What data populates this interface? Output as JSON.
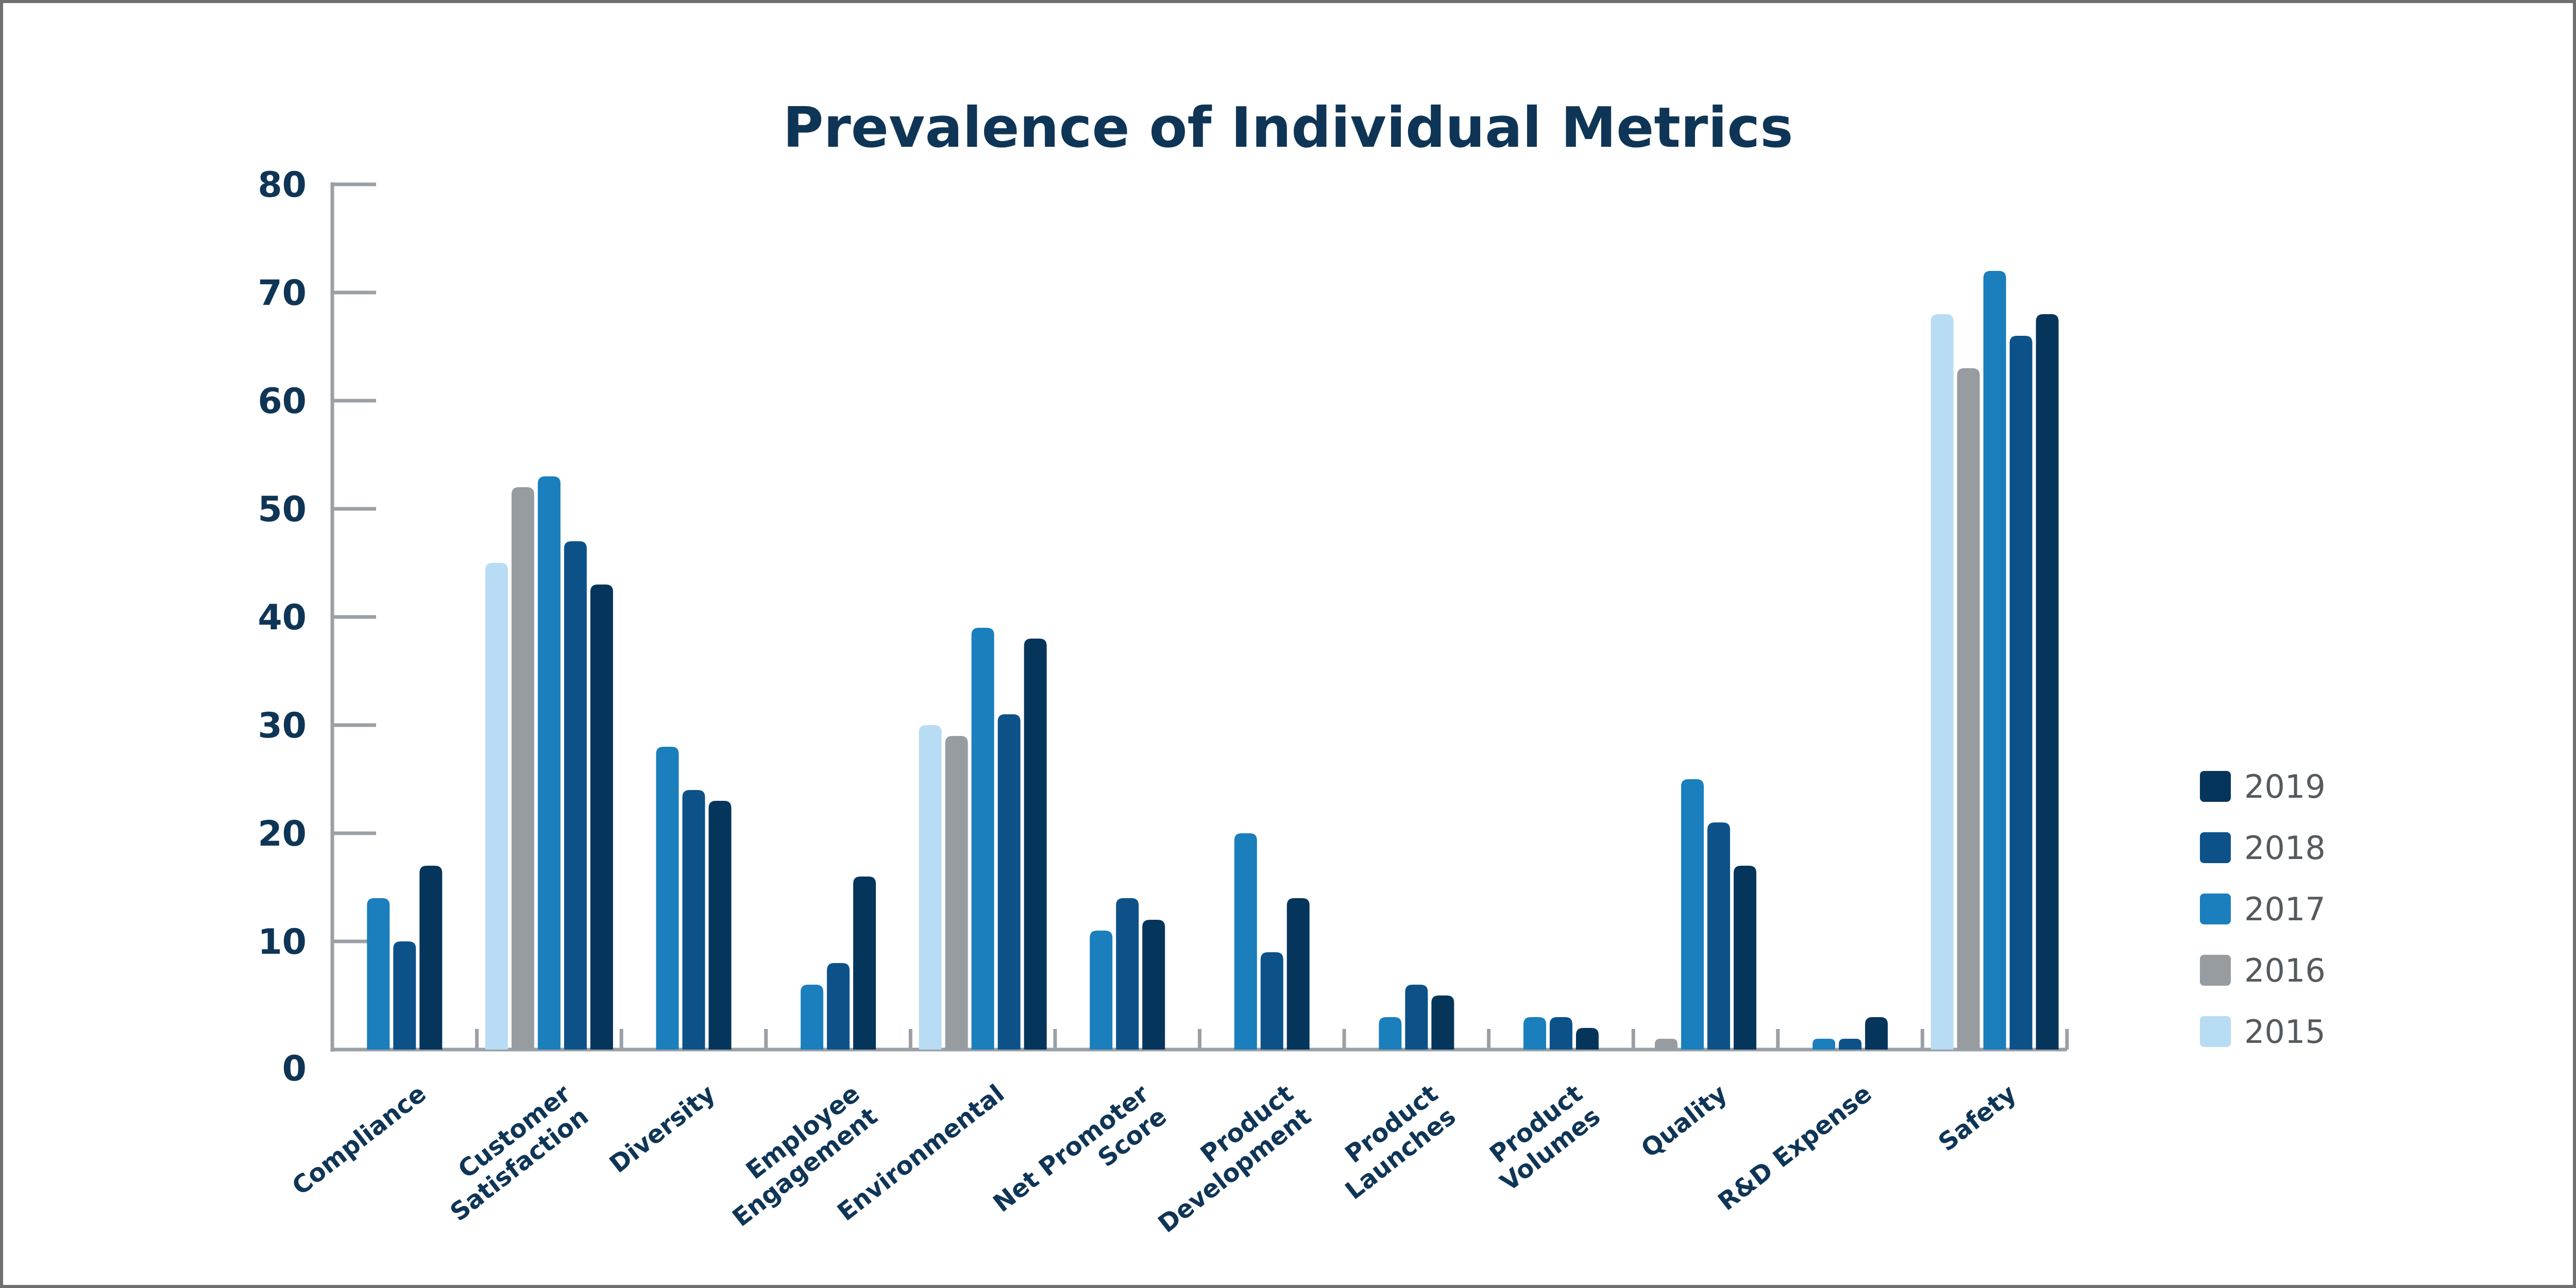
{
  "chart_data": {
    "type": "bar",
    "title": "Prevalence of Individual Metrics",
    "xlabel": "",
    "ylabel": "",
    "ylim": [
      0,
      80
    ],
    "yticks": [
      0,
      10,
      20,
      30,
      40,
      50,
      60,
      70,
      80
    ],
    "categories": [
      [
        "Compliance"
      ],
      [
        "Customer",
        "Satisfaction"
      ],
      [
        "Diversity"
      ],
      [
        "Employee",
        "Engagement"
      ],
      [
        "Environmental"
      ],
      [
        "Net Promoter",
        "Score"
      ],
      [
        "Product",
        "Development"
      ],
      [
        "Product",
        "Launches"
      ],
      [
        "Product",
        "Volumes"
      ],
      [
        "Quality"
      ],
      [
        "R&D Expense"
      ],
      [
        "Safety"
      ]
    ],
    "series": [
      {
        "name": "2015",
        "color": "#b8dcf4",
        "values": [
          null,
          45,
          null,
          null,
          30,
          null,
          null,
          null,
          null,
          null,
          null,
          68
        ]
      },
      {
        "name": "2016",
        "color": "#979ca0",
        "values": [
          null,
          52,
          null,
          null,
          29,
          null,
          null,
          null,
          null,
          1,
          null,
          63
        ]
      },
      {
        "name": "2017",
        "color": "#1a7fbc",
        "values": [
          14,
          53,
          28,
          6,
          39,
          11,
          20,
          3,
          3,
          25,
          1,
          72
        ]
      },
      {
        "name": "2018",
        "color": "#0c5289",
        "values": [
          10,
          47,
          24,
          8,
          31,
          14,
          9,
          6,
          3,
          21,
          1,
          66
        ]
      },
      {
        "name": "2019",
        "color": "#06355c",
        "values": [
          17,
          43,
          23,
          16,
          38,
          12,
          14,
          5,
          2,
          17,
          3,
          68
        ]
      }
    ],
    "legend": {
      "position": "right",
      "order": [
        "2019",
        "2018",
        "2017",
        "2016",
        "2015"
      ]
    },
    "grid": false
  }
}
